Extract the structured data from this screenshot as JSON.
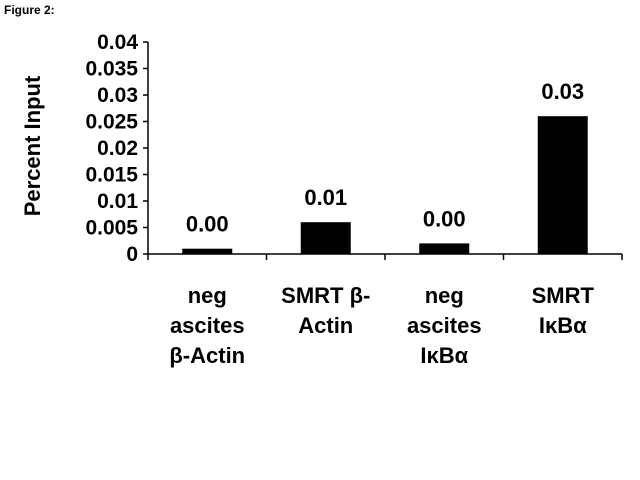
{
  "figure_label": "Figure 2:",
  "chart_data": {
    "type": "bar",
    "title": "",
    "xlabel": "",
    "ylabel": "Percent Input",
    "ylim": [
      0,
      0.04
    ],
    "yticks": [
      "0",
      "0.005",
      "0.01",
      "0.015",
      "0.02",
      "0.025",
      "0.03",
      "0.035",
      "0.04"
    ],
    "grid": false,
    "categories": [
      [
        "neg",
        "ascites",
        "β-Actin"
      ],
      [
        "SMRT β-",
        "Actin"
      ],
      [
        "neg",
        "ascites",
        "IκBα"
      ],
      [
        "SMRT",
        "IκBα"
      ]
    ],
    "values": [
      0.001,
      0.006,
      0.002,
      0.026
    ],
    "data_labels": [
      "0.00",
      "0.01",
      "0.00",
      "0.03"
    ],
    "bar_color": "#000000"
  }
}
